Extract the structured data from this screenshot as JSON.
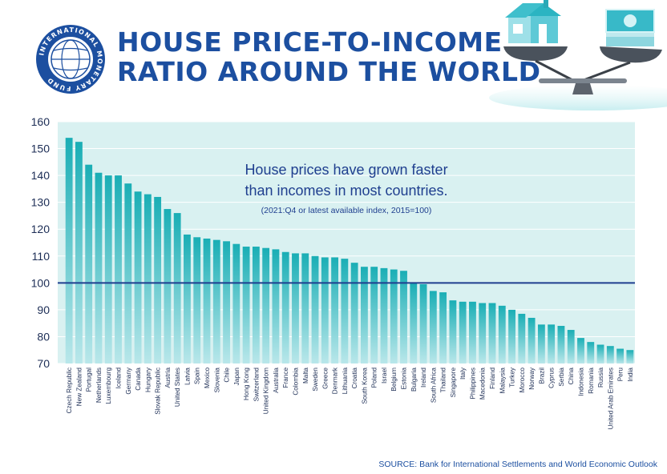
{
  "header": {
    "title_line1": "HOUSE PRICE-TO-INCOME",
    "title_line2": "RATIO AROUND THE WORLD",
    "logo_text": "INTERNATIONAL MONETARY FUND"
  },
  "colors": {
    "title": "#1c4fa0",
    "plot_bg": "#d9f1f1",
    "bar_top": "#1aaeb5",
    "bar_bottom": "#b9e7ea",
    "reference_line": "#1f3f8f",
    "annotation": "#1f3f8f"
  },
  "source": {
    "label": "SOURCE:",
    "text": "Bank for International Settlements and World Economic Outlook"
  },
  "chart_data": {
    "type": "bar",
    "title": "",
    "xlabel": "",
    "ylabel": "",
    "ylim": [
      70,
      160
    ],
    "yticks": [
      70,
      80,
      90,
      100,
      110,
      120,
      130,
      140,
      150,
      160
    ],
    "grid": true,
    "reference_line": 100,
    "annotation": {
      "line1": "House prices have grown faster",
      "line2": "than incomes in most countries.",
      "line3": "(2021:Q4 or latest available index, 2015=100)"
    },
    "categories": [
      "Czech Republic",
      "New Zealand",
      "Portugal",
      "Netherlands",
      "Luxembourg",
      "Iceland",
      "Germany",
      "Canada",
      "Hungary",
      "Slovak Republic",
      "Austria",
      "United States",
      "Latvia",
      "Spain",
      "Mexico",
      "Slovenia",
      "Chile",
      "Japan",
      "Hong Kong",
      "Switzerland",
      "United Kingdom",
      "Australia",
      "France",
      "Colombia",
      "Malta",
      "Sweden",
      "Greece",
      "Denmark",
      "Lithuania",
      "Croatia",
      "South Korea",
      "Poland",
      "Israel",
      "Belgium",
      "Estonia",
      "Bulgaria",
      "Ireland",
      "South Africa",
      "Thailand",
      "Singapore",
      "Italy",
      "Philippines",
      "Macedonia",
      "Finland",
      "Malaysia",
      "Turkey",
      "Morocco",
      "Norway",
      "Brazil",
      "Cyprus",
      "Serbia",
      "China",
      "Indonesia",
      "Romania",
      "Russia",
      "United Arab Emirates",
      "Peru",
      "India"
    ],
    "values": [
      154,
      152.5,
      144,
      141,
      140,
      140,
      137,
      134,
      133,
      132,
      127.5,
      126,
      118,
      117,
      116.5,
      116,
      115.5,
      114.5,
      113.5,
      113.5,
      113,
      112.5,
      111.5,
      111,
      111,
      110,
      109.5,
      109.5,
      109,
      107.5,
      106,
      106,
      105.5,
      105,
      104.5,
      100,
      99.5,
      97,
      96.5,
      93.5,
      93,
      93,
      92.5,
      92.5,
      91.5,
      90,
      88.5,
      87,
      84.5,
      84.5,
      84,
      82.5,
      79.5,
      78,
      77,
      76.5,
      75.5,
      75
    ]
  }
}
